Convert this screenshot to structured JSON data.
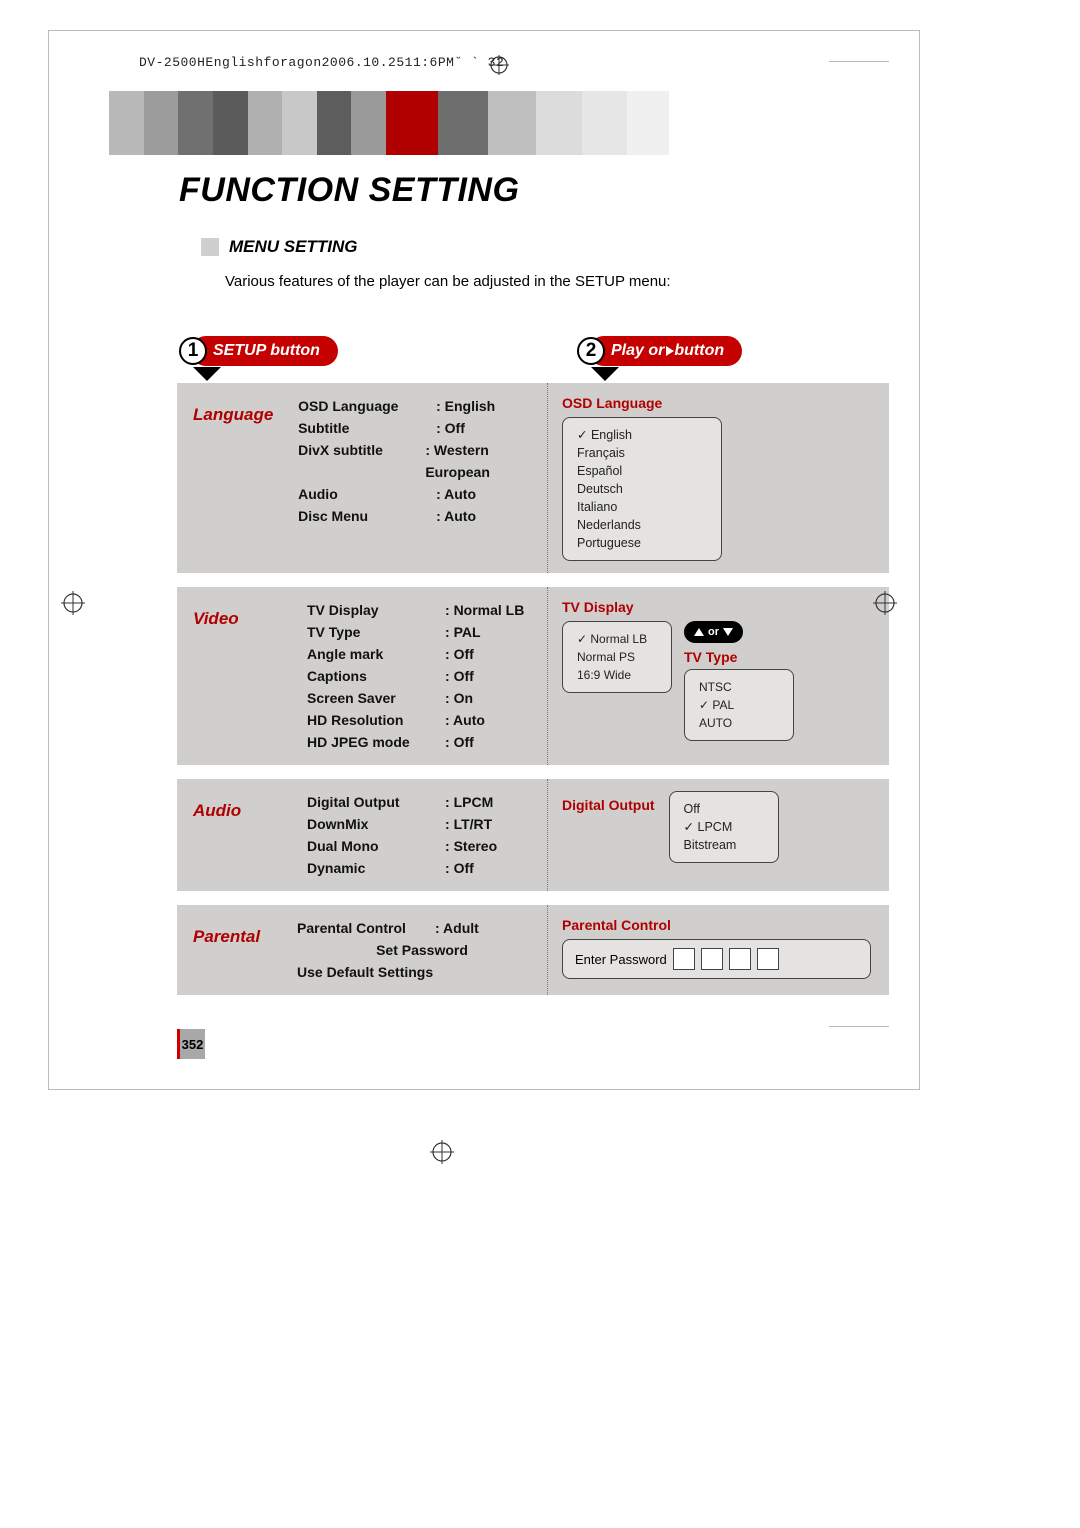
{
  "header_line": "DV-2500HEnglishforagon2006.10.2511:6PM˘   `  32",
  "title": "FUNCTION SETTING",
  "subtitle": "MENU SETTING",
  "intro": "Various features of the player can be adjusted in the SETUP menu:",
  "badge1": {
    "num": "1",
    "label": "SETUP button"
  },
  "badge2": {
    "num": "2",
    "label_prefix": "Play or ",
    "label_suffix": " button"
  },
  "page_number": "352",
  "accent_red": "#c40000",
  "panel_bg": "#d0cfcd",
  "box_bg": "#e4e3e1",
  "banner_colors": [
    "#b9b9b9",
    "#9c9c9c",
    "#707070",
    "#5b5b5b",
    "#b0b0b0",
    "#c8c8c8",
    "#5d5d5d",
    "#9a9a9a",
    "#b00000",
    "#6e6e6e",
    "#bfbfbf",
    "#dcdcdc",
    "#e6e6e6",
    "#f0f0f0"
  ],
  "sections": {
    "language": {
      "label": "Language",
      "rows": [
        {
          "k": "OSD Language",
          "v": "English"
        },
        {
          "k": "Subtitle",
          "v": "Off"
        },
        {
          "k": "DivX subtitle",
          "v": "Western European"
        },
        {
          "k": "Audio",
          "v": "Auto"
        },
        {
          "k": "Disc Menu",
          "v": "Auto"
        }
      ],
      "right_title": "OSD Language",
      "options": [
        {
          "t": "English",
          "sel": true
        },
        {
          "t": "Français"
        },
        {
          "t": "Español"
        },
        {
          "t": "Deutsch"
        },
        {
          "t": "Italiano"
        },
        {
          "t": "Nederlands"
        },
        {
          "t": "Portuguese"
        }
      ]
    },
    "video": {
      "label": "Video",
      "rows": [
        {
          "k": "TV Display",
          "v": "Normal LB"
        },
        {
          "k": "TV Type",
          "v": "PAL"
        },
        {
          "k": "Angle mark",
          "v": "Off"
        },
        {
          "k": "Captions",
          "v": "Off"
        },
        {
          "k": "Screen Saver",
          "v": "On"
        },
        {
          "k": "HD Resolution",
          "v": "Auto"
        },
        {
          "k": "HD JPEG mode",
          "v": "Off"
        }
      ],
      "right_title1": "TV Display",
      "tv_display_opts": [
        {
          "t": "Normal LB",
          "sel": true
        },
        {
          "t": "Normal PS"
        },
        {
          "t": "16:9 Wide"
        }
      ],
      "arrow_label": "or",
      "right_title2": "TV Type",
      "tv_type_opts": [
        {
          "t": "NTSC"
        },
        {
          "t": "PAL",
          "sel": true
        },
        {
          "t": "AUTO"
        }
      ]
    },
    "audio": {
      "label": "Audio",
      "rows": [
        {
          "k": "Digital Output",
          "v": "LPCM"
        },
        {
          "k": "DownMix",
          "v": "LT/RT"
        },
        {
          "k": "Dual Mono",
          "v": "Stereo"
        },
        {
          "k": "Dynamic",
          "v": "Off"
        }
      ],
      "right_title": "Digital Output",
      "options": [
        {
          "t": "Off"
        },
        {
          "t": "LPCM",
          "sel": true
        },
        {
          "t": "Bitstream"
        }
      ]
    },
    "parental": {
      "label": "Parental",
      "rows": [
        {
          "k": "Parental Control",
          "v": "Adult"
        }
      ],
      "extra1": "Set Password",
      "extra2": "Use Default Settings",
      "right_title": "Parental Control",
      "pw_label": "Enter Password"
    }
  }
}
